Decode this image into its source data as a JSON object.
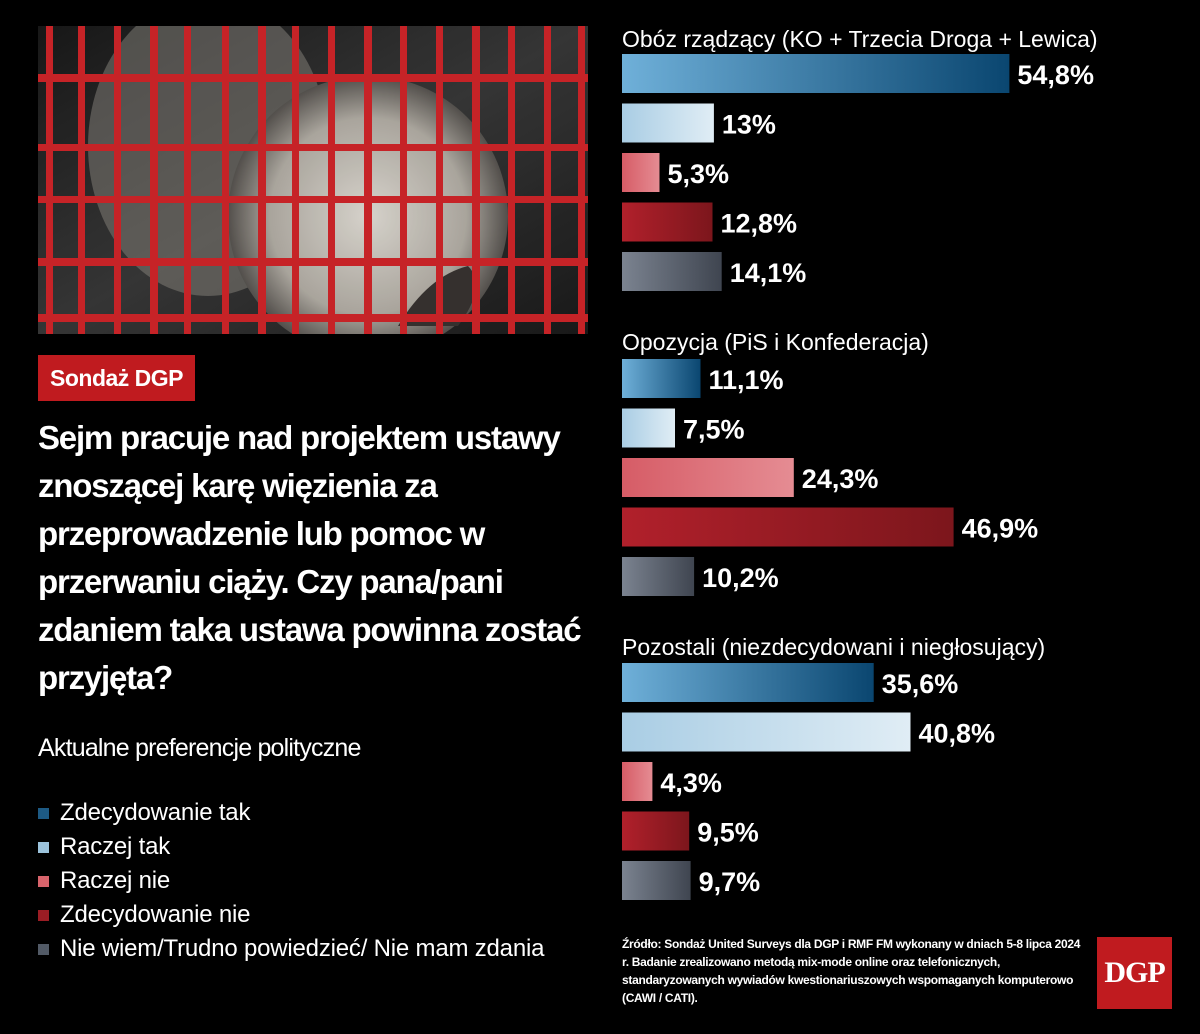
{
  "badge": "Sondaż DGP",
  "question": "Sejm pracuje nad projektem ustawy znoszącej karę więzienia za przeprowadzenie lub pomoc w przerwaniu ciąży. Czy pana/pani zdaniem taka ustawa powinna zostać przyjęta?",
  "subtitle": "Aktualne preferencje polityczne",
  "legend": [
    {
      "label": "Zdecydowanie tak",
      "color": "#1d5a84"
    },
    {
      "label": "Raczej tak",
      "color": "#9cc3dc"
    },
    {
      "label": "Raczej nie",
      "color": "#d8646c"
    },
    {
      "label": "Zdecydowanie nie",
      "color": "#9b1d24"
    },
    {
      "label": "Nie wiem/Trudno powiedzieć/ Nie mam zdania",
      "color": "#525a66"
    }
  ],
  "source": "Źródło: Sondaż United Surveys dla DGP i RMF FM wykonany w dniach 5-8 lipca 2024 r. Badanie zrealizowano metodą mix-mode online oraz telefonicznych, standaryzowanych wywiadów kwestionariuszowych wspomaganych komputerowo (CAWI / CATI).",
  "logo": "DGP",
  "chart_data": {
    "type": "bar",
    "orientation": "horizontal",
    "categories": [
      "Zdecydowanie tak",
      "Raczej tak",
      "Raczej nie",
      "Zdecydowanie nie",
      "Nie wiem/Trudno powiedzieć/ Nie mam zdania"
    ],
    "groups": [
      {
        "name": "Obóz rządzący (KO + Trzecia Droga + Lewica)",
        "values": [
          54.8,
          13,
          5.3,
          12.8,
          14.1
        ],
        "labels": [
          "54,8%",
          "13%",
          "5,3%",
          "12,8%",
          "14,1%"
        ]
      },
      {
        "name": "Opozycja (PiS i Konfederacja)",
        "values": [
          11.1,
          7.5,
          24.3,
          46.9,
          10.2
        ],
        "labels": [
          "11,1%",
          "7,5%",
          "24,3%",
          "46,9%",
          "10,2%"
        ]
      },
      {
        "name": "Pozostali (niezdecydowani i niegłosujący)",
        "values": [
          35.6,
          40.8,
          4.3,
          9.5,
          9.7
        ],
        "labels": [
          "35,6%",
          "40,8%",
          "4,3%",
          "9,5%",
          "9,7%"
        ]
      }
    ],
    "colors": {
      "dark_blue": [
        "#6fb0d9",
        "#0a4670"
      ],
      "light_blue": [
        "#a9cde4",
        "#e0edf5"
      ],
      "light_red": [
        "#d65c66",
        "#e58c93"
      ],
      "dark_red": [
        "#b1202b",
        "#7c161c"
      ],
      "grey": [
        "#7b8390",
        "#3f4550"
      ]
    },
    "unit": "%"
  }
}
